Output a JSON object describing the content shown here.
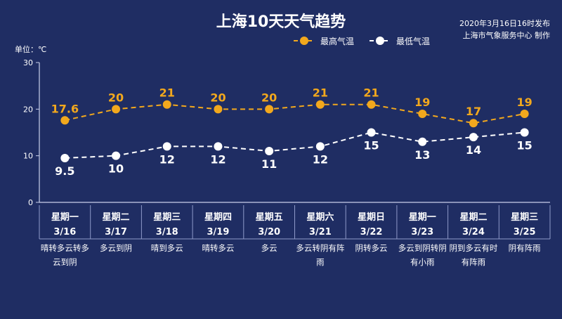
{
  "title": "上海10天天气趋势",
  "publish_info": "2020年3月16日16时发布",
  "producer": "上海市气象服务中心 制作",
  "unit_label": "单位：℃",
  "colors": {
    "background": "#1f2d63",
    "high": "#f2a81d",
    "low": "#ffffff",
    "axis": "#c9d0ea",
    "divider": "#8f9ac9"
  },
  "chart_data": {
    "type": "line",
    "ylim": [
      0,
      30
    ],
    "yticks": [
      0,
      10,
      20,
      30
    ],
    "legend_position": "top-right",
    "categories": [
      {
        "weekday": "星期一",
        "date": "3/16",
        "weather": "晴转多云转多云到阴"
      },
      {
        "weekday": "星期二",
        "date": "3/17",
        "weather": "多云到阴"
      },
      {
        "weekday": "星期三",
        "date": "3/18",
        "weather": "晴到多云"
      },
      {
        "weekday": "星期四",
        "date": "3/19",
        "weather": "晴转多云"
      },
      {
        "weekday": "星期五",
        "date": "3/20",
        "weather": "多云"
      },
      {
        "weekday": "星期六",
        "date": "3/21",
        "weather": "多云转阴有阵雨"
      },
      {
        "weekday": "星期日",
        "date": "3/22",
        "weather": "阴转多云"
      },
      {
        "weekday": "星期一",
        "date": "3/23",
        "weather": "多云到阴转阴有小雨"
      },
      {
        "weekday": "星期二",
        "date": "3/24",
        "weather": "阴到多云有时有阵雨"
      },
      {
        "weekday": "星期三",
        "date": "3/25",
        "weather": "阴有阵雨"
      }
    ],
    "series": [
      {
        "name": "最高气温",
        "values": [
          17.6,
          20,
          21,
          20,
          20,
          21,
          21,
          19,
          17,
          19
        ],
        "labels": [
          "17.6",
          "20",
          "21",
          "20",
          "20",
          "21",
          "21",
          "19",
          "17",
          "19"
        ]
      },
      {
        "name": "最低气温",
        "values": [
          9.5,
          10,
          12,
          12,
          11,
          12,
          15,
          13,
          14,
          15
        ],
        "labels": [
          "9.5",
          "10",
          "12",
          "12",
          "11",
          "12",
          "15",
          "13",
          "14",
          "15"
        ]
      }
    ]
  }
}
